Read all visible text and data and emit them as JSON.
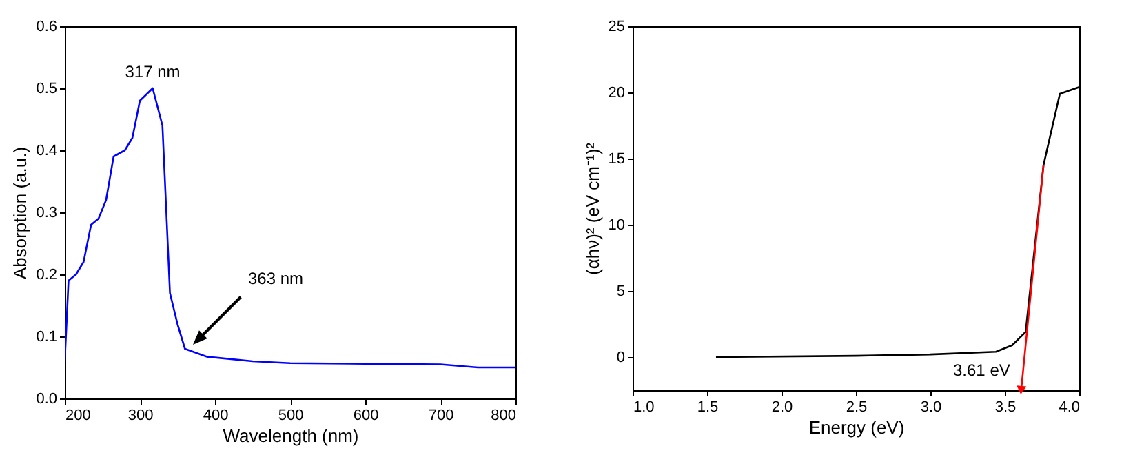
{
  "chart_data": [
    {
      "type": "line",
      "xlabel": "Wavelength (nm)",
      "ylabel": "Absorption (a.u.)",
      "xlim": [
        200,
        800
      ],
      "ylim": [
        0,
        0.6
      ],
      "xticks": [
        200,
        300,
        400,
        500,
        600,
        700,
        800
      ],
      "yticks": [
        {
          "value": 0,
          "label": "0.0"
        },
        {
          "value": 0.1,
          "label": "0.1"
        },
        {
          "value": 0.2,
          "label": "0.2"
        },
        {
          "value": 0.3,
          "label": "0.3"
        },
        {
          "value": 0.4,
          "label": "0.4"
        },
        {
          "value": 0.5,
          "label": "0.5"
        },
        {
          "value": 0.6,
          "label": "0.6"
        }
      ],
      "series": [
        {
          "color": "#0000ff",
          "x": [
            200,
            205,
            215,
            225,
            235,
            245,
            255,
            265,
            280,
            290,
            300,
            317,
            330,
            340,
            350,
            360,
            390,
            400,
            450,
            500,
            600,
            700,
            750,
            800
          ],
          "values": [
            0.06,
            0.19,
            0.2,
            0.22,
            0.28,
            0.29,
            0.32,
            0.39,
            0.4,
            0.42,
            0.48,
            0.5,
            0.44,
            0.17,
            0.12,
            0.08,
            0.067,
            0.066,
            0.06,
            0.057,
            0.056,
            0.055,
            0.05,
            0.05
          ]
        }
      ],
      "annotations": [
        {
          "text": "317 nm",
          "x": 317,
          "y": 0.5
        },
        "363 nm"
      ]
    },
    {
      "type": "line",
      "xlabel": "Energy (eV)",
      "ylabel": "(αhν)² (eV cm⁻¹)²",
      "xlim": [
        1.0,
        4.0
      ],
      "ylim": [
        -2.5,
        25
      ],
      "xticks": [
        {
          "value": 1,
          "label": "1.0"
        },
        {
          "value": 1.5,
          "label": "1.5"
        },
        {
          "value": 2,
          "label": "2.0"
        },
        {
          "value": 2.5,
          "label": "2.5"
        },
        {
          "value": 3,
          "label": "3.0"
        },
        {
          "value": 3.5,
          "label": "3.5"
        },
        {
          "value": 4,
          "label": "4.0"
        }
      ],
      "yticks": [
        0,
        5,
        10,
        15,
        20,
        25
      ],
      "series": [
        {
          "color": "#000000",
          "x": [
            1.56,
            2.5,
            3.0,
            3.44,
            3.55,
            3.64,
            3.76,
            3.87,
            4.0
          ],
          "values": [
            0,
            0.1,
            0.2,
            0.4,
            0.9,
            1.9,
            14.5,
            19.9,
            20.4
          ]
        },
        {
          "type": "line",
          "color": "#ff0000",
          "x": [
            3.76,
            3.61
          ],
          "values": [
            14.5,
            -2.5
          ]
        }
      ],
      "annotations": [
        {
          "text": "3.61 eV",
          "x": 3.61,
          "y": -1
        }
      ]
    }
  ]
}
